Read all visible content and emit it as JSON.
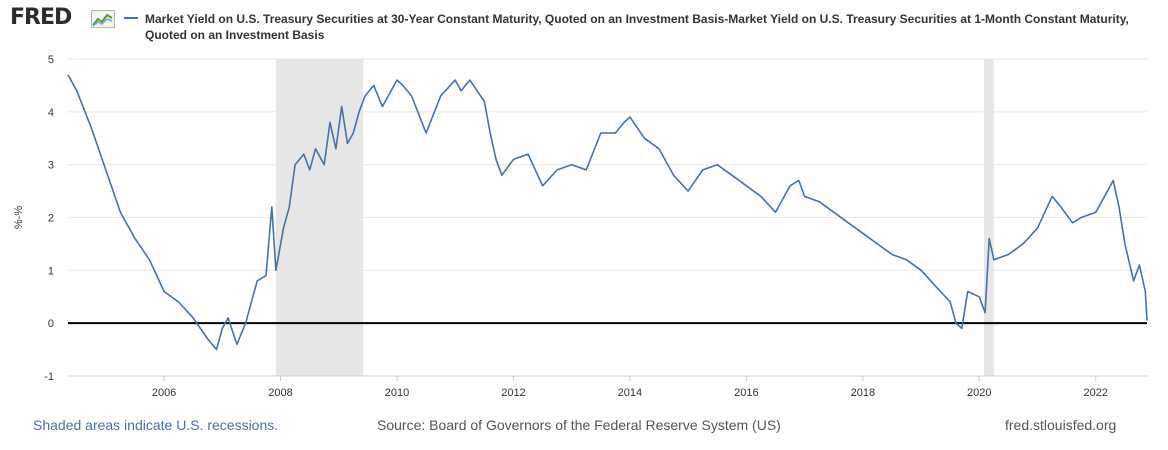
{
  "logo_text": "FRED",
  "title": "Market Yield on U.S. Treasury Securities at 30-Year Constant Maturity, Quoted on an Investment Basis-Market Yield on U.S. Treasury Securities at 1-Month Constant Maturity, Quoted on an Investment Basis",
  "footer": {
    "recession_note": "Shaded areas indicate U.S. recessions.",
    "source": "Source: Board of Governors of the Federal Reserve System (US)",
    "site": "fred.stlouisfed.org"
  },
  "colors": {
    "series": "#4572a7",
    "recession": "#e6e6e6",
    "zero_line": "#000000"
  },
  "chart_data": {
    "type": "line",
    "title": "Market Yield on U.S. Treasury Securities at 30-Year Constant Maturity, Quoted on an Investment Basis-Market Yield on U.S. Treasury Securities at 1-Month Constant Maturity, Quoted on an Investment Basis",
    "xlabel": "",
    "ylabel": "%-%",
    "xlim": [
      2004.35,
      2022.88
    ],
    "ylim": [
      -1,
      5
    ],
    "yticks": [
      -1,
      0,
      1,
      2,
      3,
      4,
      5
    ],
    "xticks": [
      2006,
      2008,
      2010,
      2012,
      2014,
      2016,
      2018,
      2020,
      2022
    ],
    "grid": "horizontal",
    "recessions": [
      [
        2007.92,
        2009.42
      ],
      [
        2020.08,
        2020.25
      ]
    ],
    "reference_line": 0,
    "series": [
      {
        "x": [
          2004.35,
          2004.5,
          2004.75,
          2005.0,
          2005.25,
          2005.5,
          2005.75,
          2006.0,
          2006.25,
          2006.5,
          2006.75,
          2006.9,
          2007.0,
          2007.1,
          2007.25,
          2007.4,
          2007.5,
          2007.6,
          2007.75,
          2007.85,
          2007.92,
          2008.05,
          2008.15,
          2008.25,
          2008.4,
          2008.5,
          2008.6,
          2008.75,
          2008.85,
          2008.95,
          2009.05,
          2009.15,
          2009.25,
          2009.35,
          2009.45,
          2009.6,
          2009.75,
          2010.0,
          2010.1,
          2010.25,
          2010.5,
          2010.75,
          2011.0,
          2011.1,
          2011.25,
          2011.5,
          2011.6,
          2011.7,
          2011.8,
          2012.0,
          2012.25,
          2012.5,
          2012.75,
          2013.0,
          2013.25,
          2013.5,
          2013.75,
          2013.9,
          2014.0,
          2014.25,
          2014.5,
          2014.75,
          2015.0,
          2015.25,
          2015.5,
          2015.75,
          2016.0,
          2016.25,
          2016.5,
          2016.75,
          2016.9,
          2017.0,
          2017.25,
          2017.5,
          2017.75,
          2018.0,
          2018.25,
          2018.5,
          2018.75,
          2019.0,
          2019.25,
          2019.5,
          2019.6,
          2019.7,
          2019.8,
          2020.0,
          2020.1,
          2020.17,
          2020.25,
          2020.5,
          2020.75,
          2021.0,
          2021.25,
          2021.4,
          2021.6,
          2021.75,
          2022.0,
          2022.2,
          2022.3,
          2022.4,
          2022.5,
          2022.65,
          2022.75,
          2022.85,
          2022.88
        ],
        "values": [
          4.7,
          4.4,
          3.7,
          2.9,
          2.1,
          1.6,
          1.2,
          0.6,
          0.4,
          0.1,
          -0.3,
          -0.5,
          -0.1,
          0.1,
          -0.4,
          0.0,
          0.4,
          0.8,
          0.9,
          2.2,
          1.0,
          1.8,
          2.2,
          3.0,
          3.2,
          2.9,
          3.3,
          3.0,
          3.8,
          3.3,
          4.1,
          3.4,
          3.6,
          4.0,
          4.3,
          4.5,
          4.1,
          4.6,
          4.5,
          4.3,
          3.6,
          4.3,
          4.6,
          4.4,
          4.6,
          4.2,
          3.6,
          3.1,
          2.8,
          3.1,
          3.2,
          2.6,
          2.9,
          3.0,
          2.9,
          3.6,
          3.6,
          3.8,
          3.9,
          3.5,
          3.3,
          2.8,
          2.5,
          2.9,
          3.0,
          2.8,
          2.6,
          2.4,
          2.1,
          2.6,
          2.7,
          2.4,
          2.3,
          2.1,
          1.9,
          1.7,
          1.5,
          1.3,
          1.2,
          1.0,
          0.7,
          0.4,
          0.0,
          -0.1,
          0.6,
          0.5,
          0.2,
          1.6,
          1.2,
          1.3,
          1.5,
          1.8,
          2.4,
          2.2,
          1.9,
          2.0,
          2.1,
          2.5,
          2.7,
          2.2,
          1.5,
          0.8,
          1.1,
          0.6,
          0.05
        ]
      }
    ]
  }
}
